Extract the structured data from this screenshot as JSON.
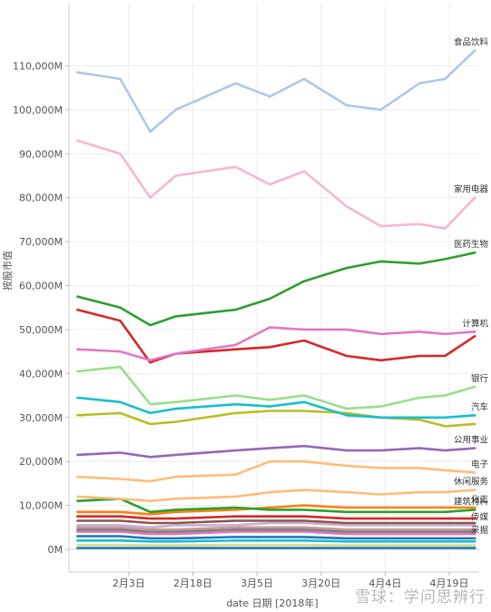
{
  "chart_data": {
    "type": "line",
    "title": "",
    "xlabel": "date 日期 [2018年]",
    "ylabel": "按股市值",
    "ylim": [
      0,
      120000
    ],
    "y_ticks": [
      {
        "value": 0,
        "label": "0M"
      },
      {
        "value": 10000,
        "label": "10,000M"
      },
      {
        "value": 20000,
        "label": "20,000M"
      },
      {
        "value": 30000,
        "label": "30,000M"
      },
      {
        "value": 40000,
        "label": "40,000M"
      },
      {
        "value": 50000,
        "label": "50,000M"
      },
      {
        "value": 60000,
        "label": "60,000M"
      },
      {
        "value": 70000,
        "label": "70,000M"
      },
      {
        "value": 80000,
        "label": "80,000M"
      },
      {
        "value": 90000,
        "label": "90,000M"
      },
      {
        "value": 100000,
        "label": "100,000M"
      },
      {
        "value": 110000,
        "label": "110,000M"
      }
    ],
    "xlim": [
      "2018-01-20",
      "2018-04-26"
    ],
    "x_ticks": [
      {
        "value": "2018-02-03",
        "label": "2月3日"
      },
      {
        "value": "2018-02-18",
        "label": "2月18日"
      },
      {
        "value": "2018-03-05",
        "label": "3月5日"
      },
      {
        "value": "2018-03-20",
        "label": "3月20日"
      },
      {
        "value": "2018-04-04",
        "label": "4月4日"
      },
      {
        "value": "2018-04-19",
        "label": "4月19日"
      }
    ],
    "grid": true,
    "x": [
      "2018-01-22",
      "2018-02-01",
      "2018-02-08",
      "2018-02-14",
      "2018-02-28",
      "2018-03-08",
      "2018-03-16",
      "2018-03-26",
      "2018-04-03",
      "2018-04-12",
      "2018-04-18",
      "2018-04-25"
    ],
    "series": [
      {
        "name": "食品饮料",
        "color": "#aec7e8",
        "values": [
          108500,
          107000,
          95000,
          100000,
          106000,
          103000,
          107000,
          101000,
          100000,
          106000,
          107000,
          113500
        ]
      },
      {
        "name": "家用电器",
        "color": "#f7b6d2",
        "values": [
          93000,
          90000,
          80000,
          85000,
          87000,
          83000,
          86000,
          78000,
          73500,
          74000,
          73000,
          80000
        ]
      },
      {
        "name": "医药生物",
        "color": "#2ca02c",
        "values": [
          57500,
          55000,
          51000,
          53000,
          54500,
          57000,
          61000,
          64000,
          65500,
          65000,
          66000,
          67500
        ]
      },
      {
        "name": "计算机",
        "color": "#e377c2",
        "values": [
          45500,
          45000,
          43000,
          44500,
          46500,
          50500,
          50000,
          50000,
          49000,
          49500,
          49000,
          49500
        ]
      },
      {
        "name": "",
        "color": "#d62728",
        "values": [
          54500,
          52000,
          42500,
          44500,
          45500,
          46000,
          47500,
          44000,
          43000,
          44000,
          44000,
          48500
        ]
      },
      {
        "name": "银行",
        "color": "#98df8a",
        "values": [
          40500,
          41500,
          33000,
          33500,
          35000,
          34000,
          35000,
          32000,
          32500,
          34500,
          35000,
          37000
        ]
      },
      {
        "name": "汽车",
        "color": "#17becf",
        "values": [
          34500,
          33500,
          31000,
          32000,
          33000,
          32500,
          33500,
          30500,
          30000,
          30000,
          30000,
          30500
        ]
      },
      {
        "name": "",
        "color": "#bcbd22",
        "values": [
          30500,
          31000,
          28500,
          29000,
          31000,
          31500,
          31500,
          31000,
          30000,
          29500,
          28000,
          28500
        ]
      },
      {
        "name": "公用事业",
        "color": "#9467bd",
        "values": [
          21500,
          22000,
          21000,
          21500,
          22500,
          23000,
          23500,
          22500,
          22500,
          23000,
          22500,
          23000
        ]
      },
      {
        "name": "电子",
        "color": "#ffbb78",
        "values": [
          16500,
          16000,
          15500,
          16500,
          17000,
          20000,
          20000,
          19000,
          18500,
          18500,
          18000,
          17500
        ]
      },
      {
        "name": "休闲服务",
        "color": "#ffbb78",
        "values": [
          12000,
          11500,
          11000,
          11500,
          12000,
          13000,
          13500,
          13000,
          12500,
          13000,
          13000,
          13500
        ]
      },
      {
        "name": "建筑材料",
        "color": "#2ca02c",
        "values": [
          11000,
          11500,
          8500,
          9000,
          9500,
          9000,
          9000,
          8500,
          8500,
          8500,
          8500,
          9000
        ]
      },
      {
        "name": "化工",
        "color": "#ff7f0e",
        "values": [
          8500,
          8500,
          8000,
          8500,
          9000,
          9500,
          10000,
          9500,
          9500,
          9500,
          9500,
          9500
        ]
      },
      {
        "name": "",
        "color": "#d62728",
        "values": [
          7500,
          7500,
          7000,
          7000,
          7500,
          7500,
          7500,
          7000,
          7000,
          7000,
          7000,
          7000
        ]
      },
      {
        "name": "",
        "color": "#8c564b",
        "values": [
          6500,
          6500,
          6000,
          6000,
          6500,
          6500,
          6500,
          6000,
          6000,
          6000,
          6000,
          6000
        ]
      },
      {
        "name": "传媒",
        "color": "#c5b0d5",
        "values": [
          5500,
          5500,
          5000,
          5500,
          5500,
          6000,
          6000,
          5500,
          5500,
          5500,
          5500,
          5500
        ]
      },
      {
        "name": "",
        "color": "#c49c94",
        "values": [
          5000,
          5000,
          4500,
          4500,
          5000,
          5000,
          5000,
          4500,
          4500,
          4500,
          4500,
          4500
        ]
      },
      {
        "name": "",
        "color": "#7f7f7f",
        "values": [
          4500,
          4500,
          4000,
          4000,
          4500,
          4500,
          4500,
          4000,
          4000,
          4000,
          4000,
          4000
        ]
      },
      {
        "name": "",
        "color": "#e377c2",
        "values": [
          4000,
          4000,
          3500,
          3500,
          4000,
          4000,
          4000,
          3500,
          3500,
          3500,
          3500,
          3500
        ]
      },
      {
        "name": "采掘",
        "color": "#1f77b4",
        "values": [
          3000,
          3000,
          2500,
          2500,
          2800,
          2800,
          2800,
          2500,
          2500,
          2500,
          2500,
          2500
        ]
      },
      {
        "name": "",
        "color": "#17becf",
        "values": [
          2000,
          2000,
          1800,
          1800,
          2000,
          2000,
          2000,
          1800,
          1800,
          1800,
          1800,
          1800
        ]
      },
      {
        "name": "",
        "color": "#dbdb8d",
        "values": [
          1000,
          1000,
          900,
          900,
          1000,
          1000,
          1000,
          900,
          900,
          900,
          900,
          900
        ]
      },
      {
        "name": "",
        "color": "#1f77b4",
        "values": [
          300,
          300,
          300,
          300,
          300,
          300,
          300,
          300,
          300,
          300,
          300,
          300
        ]
      }
    ]
  },
  "watermark": "雪球：学问思辨行"
}
